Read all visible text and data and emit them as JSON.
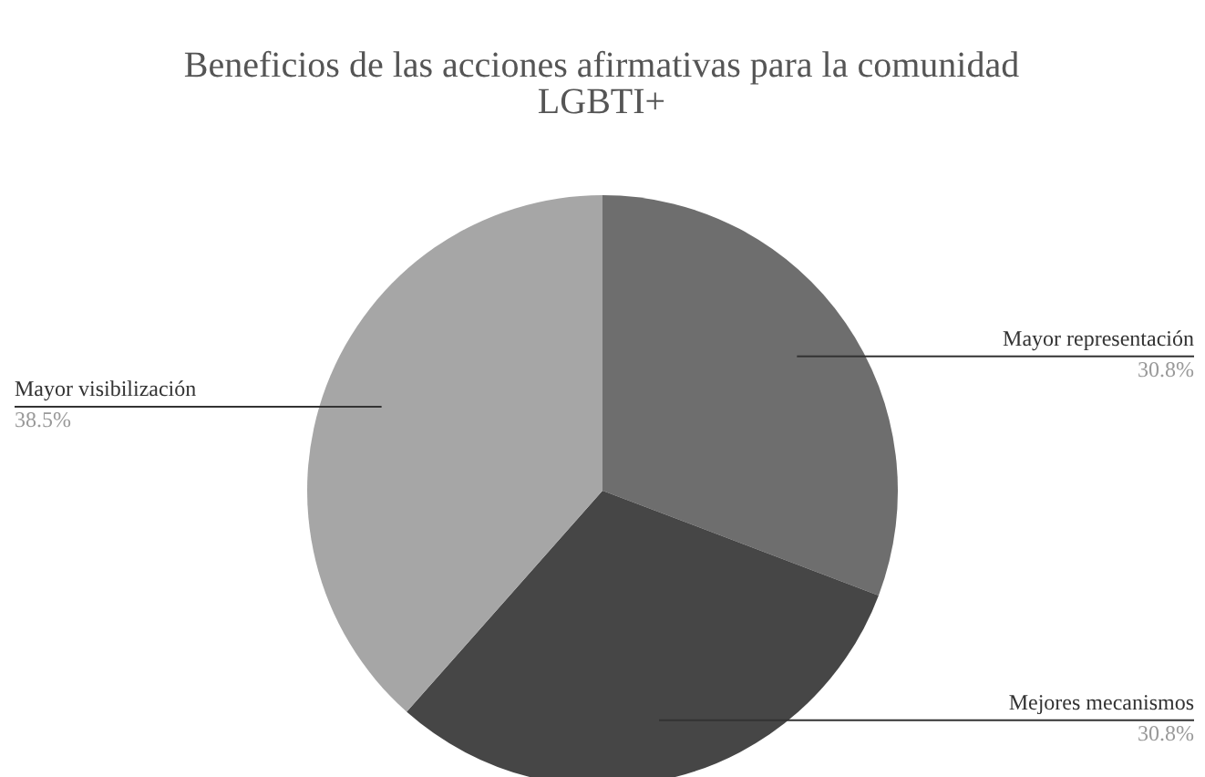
{
  "chart_data": {
    "type": "pie",
    "title": "Beneficios de las acciones afirmativas para la comunidad LGBTI+",
    "categories": [
      "Mayor representación",
      "Mejores mecanismos",
      "Mayor visibilización"
    ],
    "values": [
      30.8,
      30.8,
      38.5
    ],
    "colors": [
      "#6e6e6e",
      "#464646",
      "#a6a6a6"
    ],
    "value_labels": [
      "30.8%",
      "30.8%",
      "38.5%"
    ],
    "legend": false
  }
}
